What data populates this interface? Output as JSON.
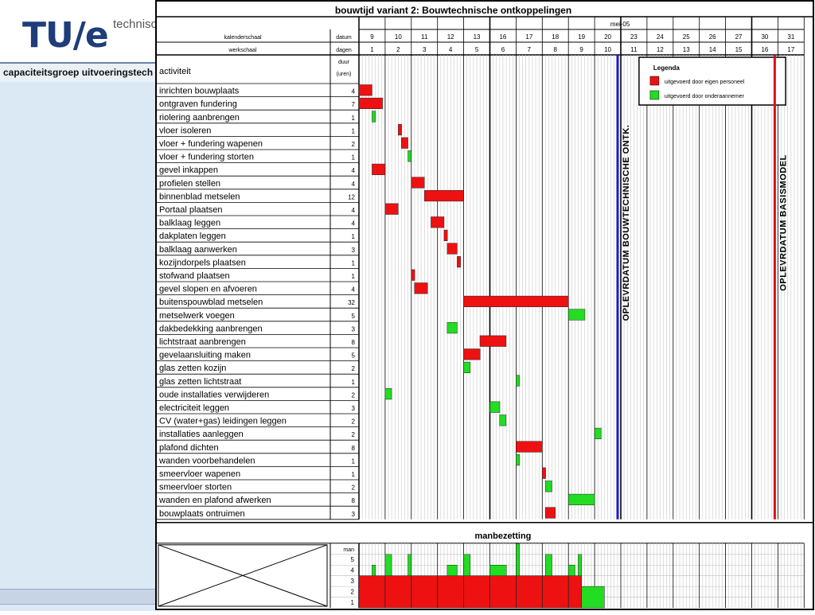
{
  "header": {
    "logo_main": "TU/e",
    "logo_sub": "technisc",
    "bar_text": "capaciteitsgroep uitvoeringstech"
  },
  "chart_data": {
    "type": "gantt",
    "title": "bouwtijd variant 2: Bouwtechnische ontkoppelingen",
    "month_label": "mei-05",
    "row_label_kalender": "kalenderschaal",
    "row_label_werk": "werkschaal",
    "col_label_datum": "datum",
    "col_label_dagen": "dagen",
    "calendar_dates": [
      "9",
      "10",
      "11",
      "12",
      "13",
      "16",
      "17",
      "18",
      "19",
      "20",
      "23",
      "24",
      "25",
      "26",
      "27",
      "30",
      "31"
    ],
    "work_days": [
      "1",
      "2",
      "3",
      "4",
      "5",
      "6",
      "7",
      "8",
      "9",
      "10",
      "11",
      "12",
      "13",
      "14",
      "15",
      "16",
      "17"
    ],
    "activity_header": "activiteit",
    "duration_header": "duur (uren)",
    "legend_title": "Legenda",
    "legend": [
      {
        "label": "uitgevoerd door eigen personeel",
        "color": "#ee1111"
      },
      {
        "label": "uitgevoerd door onderaannemer",
        "color": "#22dd22"
      }
    ],
    "vlines": [
      {
        "day": 10,
        "label": "OPLEVRDATUM BOUWTECHNISCHE ONTK.",
        "color": "#1a1acc"
      },
      {
        "day": 16,
        "label": "OPLEVRDATUM BASISMODEL",
        "color": "#dd1111"
      }
    ],
    "activities": [
      {
        "name": "inrichten bouwplaats",
        "hours": "4",
        "start": 0,
        "dur": 0.5,
        "who": "eigen"
      },
      {
        "name": "ontgraven fundering",
        "hours": "7",
        "start": 0,
        "dur": 0.9,
        "who": "eigen"
      },
      {
        "name": "riolering aanbrengen",
        "hours": "1",
        "start": 0.5,
        "dur": 0.13,
        "who": "onder"
      },
      {
        "name": "vloer isoleren",
        "hours": "1",
        "start": 1.5,
        "dur": 0.13,
        "who": "eigen"
      },
      {
        "name": "vloer + fundering wapenen",
        "hours": "2",
        "start": 1.62,
        "dur": 0.25,
        "who": "eigen"
      },
      {
        "name": "vloer + fundering storten",
        "hours": "1",
        "start": 1.87,
        "dur": 0.13,
        "who": "onder"
      },
      {
        "name": "gevel inkappen",
        "hours": "4",
        "start": 0.5,
        "dur": 0.5,
        "who": "eigen"
      },
      {
        "name": "profielen stellen",
        "hours": "4",
        "start": 2,
        "dur": 0.5,
        "who": "eigen"
      },
      {
        "name": "binnenblad metselen",
        "hours": "12",
        "start": 2.5,
        "dur": 1.5,
        "who": "eigen"
      },
      {
        "name": "Portaal plaatsen",
        "hours": "4",
        "start": 1,
        "dur": 0.5,
        "who": "eigen"
      },
      {
        "name": "balklaag leggen",
        "hours": "4",
        "start": 2.75,
        "dur": 0.5,
        "who": "eigen"
      },
      {
        "name": "dakplaten leggen",
        "hours": "1",
        "start": 3.25,
        "dur": 0.13,
        "who": "eigen"
      },
      {
        "name": "balklaag aanwerken",
        "hours": "3",
        "start": 3.37,
        "dur": 0.38,
        "who": "eigen"
      },
      {
        "name": "kozijndorpels plaatsen",
        "hours": "1",
        "start": 3.75,
        "dur": 0.13,
        "who": "eigen"
      },
      {
        "name": "stofwand plaatsen",
        "hours": "1",
        "start": 2,
        "dur": 0.13,
        "who": "eigen"
      },
      {
        "name": "gevel slopen en afvoeren",
        "hours": "4",
        "start": 2.12,
        "dur": 0.5,
        "who": "eigen"
      },
      {
        "name": "buitenspouwblad metselen",
        "hours": "32",
        "start": 4,
        "dur": 4,
        "who": "eigen"
      },
      {
        "name": "metselwerk voegen",
        "hours": "5",
        "start": 8,
        "dur": 0.63,
        "who": "onder"
      },
      {
        "name": "dakbedekking aanbrengen",
        "hours": "3",
        "start": 3.37,
        "dur": 0.38,
        "who": "onder"
      },
      {
        "name": "lichtstraat aanbrengen",
        "hours": "8",
        "start": 4.62,
        "dur": 1,
        "who": "eigen"
      },
      {
        "name": "gevelaansluiting maken",
        "hours": "5",
        "start": 4,
        "dur": 0.63,
        "who": "eigen"
      },
      {
        "name": "glas zetten kozijn",
        "hours": "2",
        "start": 4,
        "dur": 0.25,
        "who": "onder"
      },
      {
        "name": "glas zetten lichtstraat",
        "hours": "1",
        "start": 6,
        "dur": 0.13,
        "who": "onder"
      },
      {
        "name": "oude installaties verwijderen",
        "hours": "2",
        "start": 1,
        "dur": 0.25,
        "who": "onder"
      },
      {
        "name": "electriciteit leggen",
        "hours": "3",
        "start": 5,
        "dur": 0.38,
        "who": "onder"
      },
      {
        "name": "CV (water+gas) leidingen leggen",
        "hours": "2",
        "start": 5.37,
        "dur": 0.25,
        "who": "onder"
      },
      {
        "name": "installaties aanleggen",
        "hours": "2",
        "start": 9,
        "dur": 0.25,
        "who": "onder"
      },
      {
        "name": "plafond dichten",
        "hours": "8",
        "start": 6,
        "dur": 1,
        "who": "eigen"
      },
      {
        "name": "wanden voorbehandelen",
        "hours": "1",
        "start": 6,
        "dur": 0.13,
        "who": "onder"
      },
      {
        "name": "smeervloer wapenen",
        "hours": "1",
        "start": 7,
        "dur": 0.13,
        "who": "eigen"
      },
      {
        "name": "smeervloer storten",
        "hours": "2",
        "start": 7.12,
        "dur": 0.25,
        "who": "onder"
      },
      {
        "name": "wanden en plafond afwerken",
        "hours": "8",
        "start": 8,
        "dur": 1,
        "who": "onder"
      },
      {
        "name": "bouwplaats ontruimen",
        "hours": "3",
        "start": 7.12,
        "dur": 0.38,
        "who": "eigen"
      }
    ],
    "manning_title": "manbezetting",
    "manning_axis_label": "man",
    "manning_levels": [
      "5",
      "4",
      "3",
      "2",
      "1"
    ],
    "manning_red": [
      {
        "start": 0,
        "end": 8.5,
        "value": 3
      }
    ],
    "manning_green": [
      {
        "start": 0.5,
        "end": 0.63,
        "value": 4
      },
      {
        "start": 1,
        "end": 1.25,
        "value": 5
      },
      {
        "start": 1.87,
        "end": 2,
        "value": 5
      },
      {
        "start": 3.37,
        "end": 3.75,
        "value": 4
      },
      {
        "start": 4,
        "end": 4.25,
        "value": 5
      },
      {
        "start": 5,
        "end": 5.63,
        "value": 4
      },
      {
        "start": 6,
        "end": 6.13,
        "value": 6
      },
      {
        "start": 7.12,
        "end": 7.37,
        "value": 5
      },
      {
        "start": 8,
        "end": 8.25,
        "value": 4
      },
      {
        "start": 8.37,
        "end": 8.5,
        "value": 5
      },
      {
        "start": 8.5,
        "end": 9.37,
        "value": 2
      }
    ]
  }
}
